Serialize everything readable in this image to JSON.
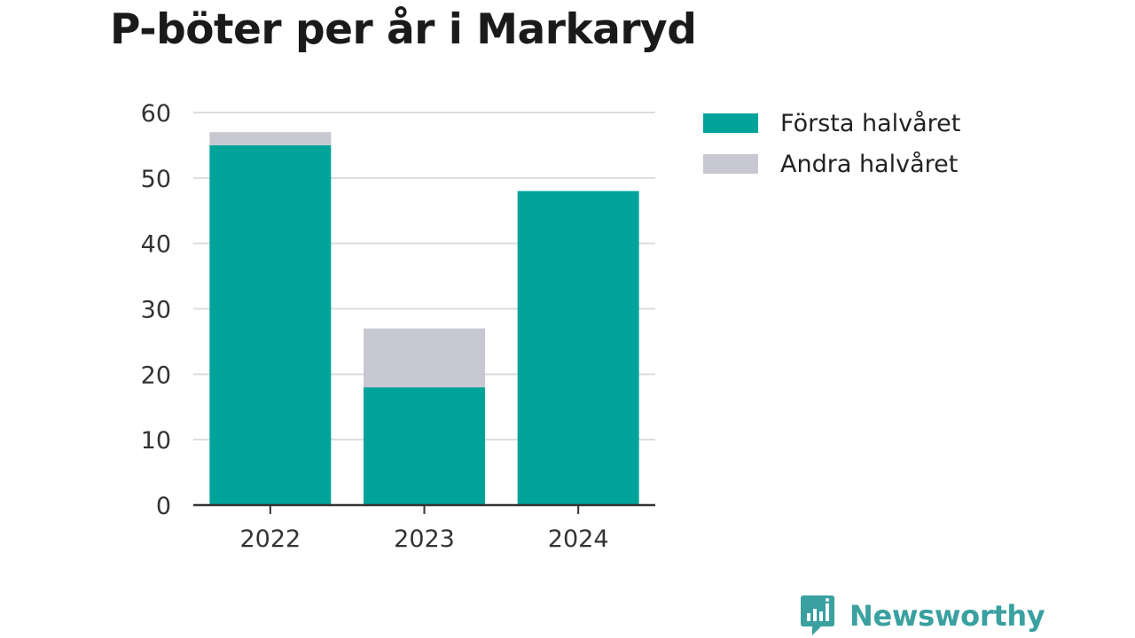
{
  "chart_data": {
    "type": "bar",
    "stacked": true,
    "title": "P-böter per år i Markaryd",
    "categories": [
      "2022",
      "2023",
      "2024"
    ],
    "series": [
      {
        "name": "Första halvåret",
        "values": [
          55,
          18,
          48
        ],
        "color": "#00a39a"
      },
      {
        "name": "Andra halvåret",
        "values": [
          2,
          9,
          0
        ],
        "color": "#c8c8d2"
      }
    ],
    "ylim": [
      0,
      60
    ],
    "yticks": [
      0,
      10,
      20,
      30,
      40,
      50,
      60
    ],
    "xlabel": "",
    "ylabel": "",
    "grid": true,
    "legend_position": "top-right"
  },
  "brand": {
    "name": "Newsworthy",
    "icon": "newsworthy-logo-icon",
    "color": "#3aa0a0"
  }
}
